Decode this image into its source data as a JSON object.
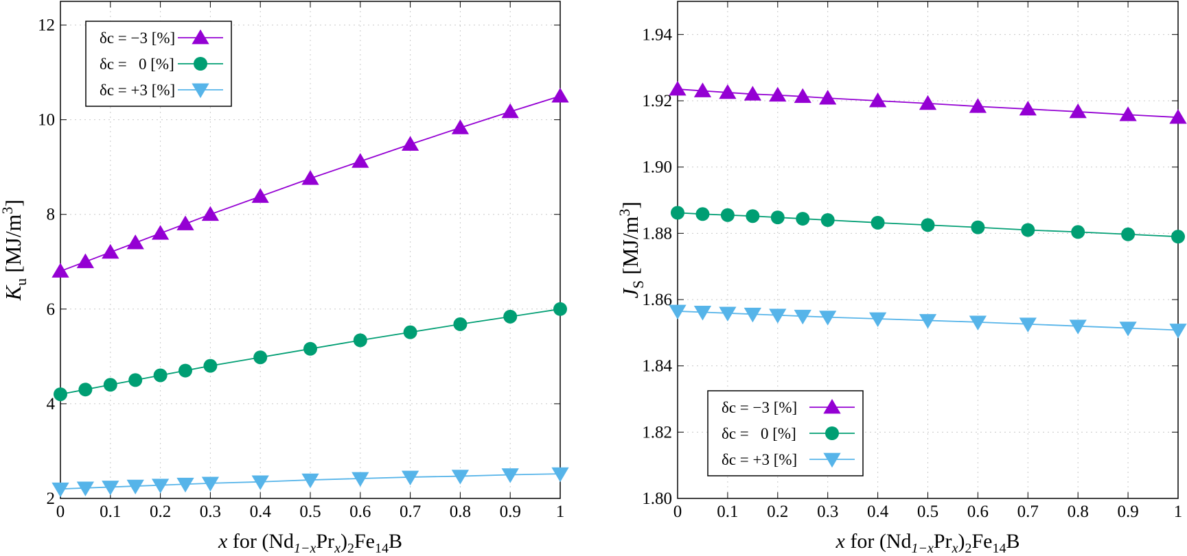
{
  "chart_data": [
    {
      "type": "line",
      "ylabel": [
        "K",
        "u",
        " [MJ/m",
        "3",
        "]"
      ],
      "xlabel": [
        "x",
        " for (Nd",
        "1−x",
        "Pr",
        "x",
        ")",
        "2",
        "Fe",
        "14",
        "B"
      ],
      "x": [
        0,
        0.05,
        0.1,
        0.15,
        0.2,
        0.25,
        0.3,
        0.4,
        0.5,
        0.6,
        0.7,
        0.8,
        0.9,
        1
      ],
      "xlim": [
        0,
        1
      ],
      "xticks": [
        0,
        0.1,
        0.2,
        0.3,
        0.4,
        0.5,
        0.6,
        0.7,
        0.8,
        0.9,
        1
      ],
      "ylim": [
        2,
        12.5
      ],
      "yticks": [
        2,
        4,
        6,
        8,
        10,
        12
      ],
      "grid": true,
      "legend": "upper left",
      "series": [
        {
          "name": "δc = −3 [%]",
          "color": "#9400d3",
          "marker": "triangle-up",
          "values": [
            6.8,
            7.0,
            7.2,
            7.4,
            7.6,
            7.8,
            8.0,
            8.38,
            8.76,
            9.12,
            9.48,
            9.83,
            10.17,
            10.5
          ]
        },
        {
          "name": "δc =   0 [%]",
          "color": "#009e73",
          "marker": "circle",
          "values": [
            4.2,
            4.3,
            4.4,
            4.5,
            4.6,
            4.7,
            4.8,
            4.98,
            5.16,
            5.34,
            5.51,
            5.68,
            5.84,
            6.0
          ]
        },
        {
          "name": "δc = +3 [%]",
          "color": "#56b4e9",
          "marker": "triangle-down",
          "values": [
            2.2,
            2.22,
            2.24,
            2.26,
            2.28,
            2.3,
            2.32,
            2.35,
            2.39,
            2.42,
            2.45,
            2.47,
            2.5,
            2.52
          ]
        }
      ]
    },
    {
      "type": "line",
      "ylabel": [
        "J",
        "S",
        " [MJ/m",
        "3",
        "]"
      ],
      "xlabel": [
        "x",
        " for (Nd",
        "1−x",
        "Pr",
        "x",
        ")",
        "2",
        "Fe",
        "14",
        "B"
      ],
      "x": [
        0,
        0.05,
        0.1,
        0.15,
        0.2,
        0.25,
        0.3,
        0.4,
        0.5,
        0.6,
        0.7,
        0.8,
        0.9,
        1
      ],
      "xlim": [
        0,
        1
      ],
      "xticks": [
        0,
        0.1,
        0.2,
        0.3,
        0.4,
        0.5,
        0.6,
        0.7,
        0.8,
        0.9,
        1
      ],
      "ylim": [
        1.8,
        1.95
      ],
      "yticks": [
        {
          "value": 1.8,
          "label": "1.80"
        },
        {
          "value": 1.82,
          "label": "1.82"
        },
        {
          "value": 1.84,
          "label": "1.84"
        },
        {
          "value": 1.86,
          "label": "1.86"
        },
        {
          "value": 1.88,
          "label": "1.88"
        },
        {
          "value": 1.9,
          "label": "1.90"
        },
        {
          "value": 1.92,
          "label": "1.92"
        },
        {
          "value": 1.94,
          "label": "1.94"
        }
      ],
      "grid": true,
      "legend": "lower left",
      "series": [
        {
          "name": "δc = −3 [%]",
          "color": "#9400d3",
          "marker": "triangle-up",
          "values": [
            1.9235,
            1.923,
            1.9225,
            1.922,
            1.9217,
            1.9213,
            1.9208,
            1.92,
            1.9192,
            1.9183,
            1.9175,
            1.9167,
            1.9158,
            1.915
          ]
        },
        {
          "name": "δc =   0 [%]",
          "color": "#009e73",
          "marker": "circle",
          "values": [
            1.8862,
            1.8858,
            1.8855,
            1.8852,
            1.8848,
            1.8844,
            1.884,
            1.8832,
            1.8825,
            1.8818,
            1.881,
            1.8804,
            1.8797,
            1.879
          ]
        },
        {
          "name": "δc = +3 [%]",
          "color": "#56b4e9",
          "marker": "triangle-down",
          "values": [
            1.8565,
            1.8562,
            1.8559,
            1.8556,
            1.8553,
            1.855,
            1.8547,
            1.8542,
            1.8537,
            1.8532,
            1.8526,
            1.852,
            1.8514,
            1.8508
          ]
        }
      ]
    }
  ]
}
